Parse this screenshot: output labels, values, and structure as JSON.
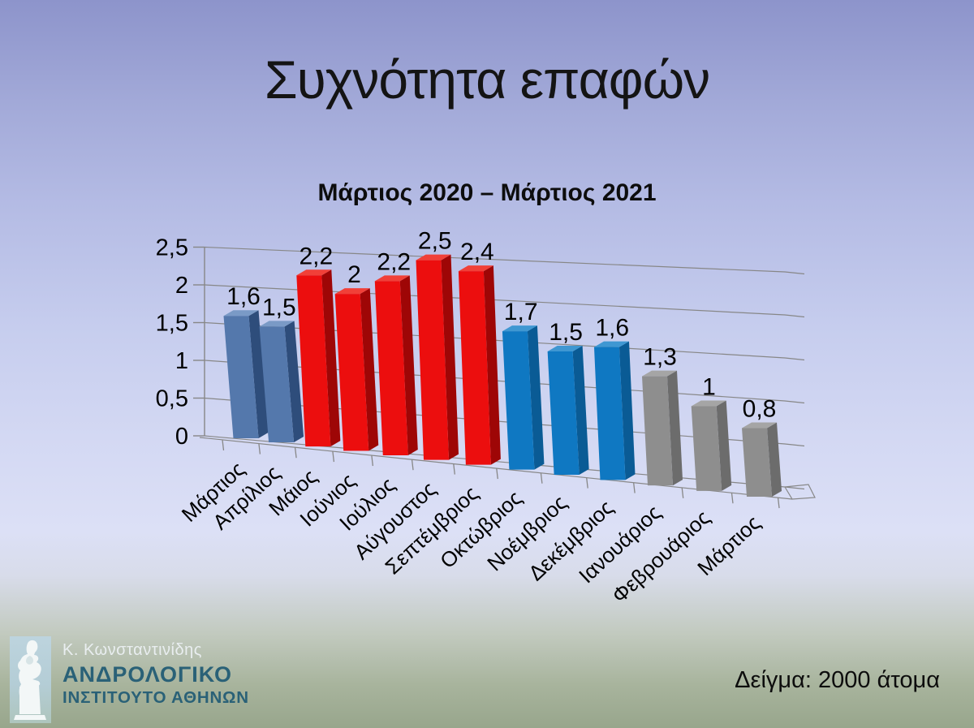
{
  "slide": {
    "title": "Συχνότητα επαφών",
    "sample_note": "Δείγμα: 2000 άτομα"
  },
  "logo": {
    "icon": "thinker-statue-icon",
    "person": "Κ. Κωνσταντινίδης",
    "org_line1": "ΑΝΔΡΟΛΟΓΙΚΟ",
    "org_line2": "ΙΝΣΤΙΤΟΥΤΟ ΑΘΗΝΩΝ",
    "person_color": "#e9eef0",
    "org_color": "#2a6177",
    "icon_bg": "#b4cdd6"
  },
  "chart_data": {
    "type": "bar",
    "style": "3d-perspective-column",
    "title": "Μάρτιος 2020 – Μάρτιος 2021",
    "categories": [
      "Μάρτιος",
      "Απρίλιος",
      "Μάιος",
      "Ιούνιος",
      "Ιούλιος",
      "Αύγουστος",
      "Σεπτέμβριος",
      "Οκτώβριος",
      "Νοέμβριος",
      "Δεκέμβριος",
      "Ιανουάριος",
      "Φεβρουάριος",
      "Μάρτιος"
    ],
    "values": [
      1.6,
      1.5,
      2.2,
      2,
      2.2,
      2.5,
      2.4,
      1.7,
      1.5,
      1.6,
      1.3,
      1,
      0.8
    ],
    "value_labels": [
      "1,6",
      "1,5",
      "2,2",
      "2",
      "2,2",
      "2,5",
      "2,4",
      "1,7",
      "1,5",
      "1,6",
      "1,3",
      "1",
      "0,8"
    ],
    "bar_groups": [
      "steel",
      "steel",
      "red",
      "red",
      "red",
      "red",
      "red",
      "azure",
      "azure",
      "azure",
      "gray",
      "gray",
      "gray"
    ],
    "colors": {
      "steel": {
        "front": "#5478AC",
        "top": "#7A9AC6",
        "side": "#2E4D7B"
      },
      "red": {
        "front": "#EC0E0E",
        "top": "#F14038",
        "side": "#9E0606"
      },
      "azure": {
        "front": "#0F78C2",
        "top": "#3F97D2",
        "side": "#0A5B95"
      },
      "gray": {
        "front": "#8E8E8E",
        "top": "#A5A5A5",
        "side": "#6C6C6C"
      }
    },
    "xlabel": "",
    "ylabel": "",
    "ylim": [
      0,
      2.5
    ],
    "ytick_labels": [
      "0",
      "0,5",
      "1",
      "1,5",
      "2",
      "2,5"
    ],
    "ytick_step": 0.5,
    "grid": true,
    "legend": false,
    "axis_color": "#878787",
    "label_color": "#000000"
  }
}
